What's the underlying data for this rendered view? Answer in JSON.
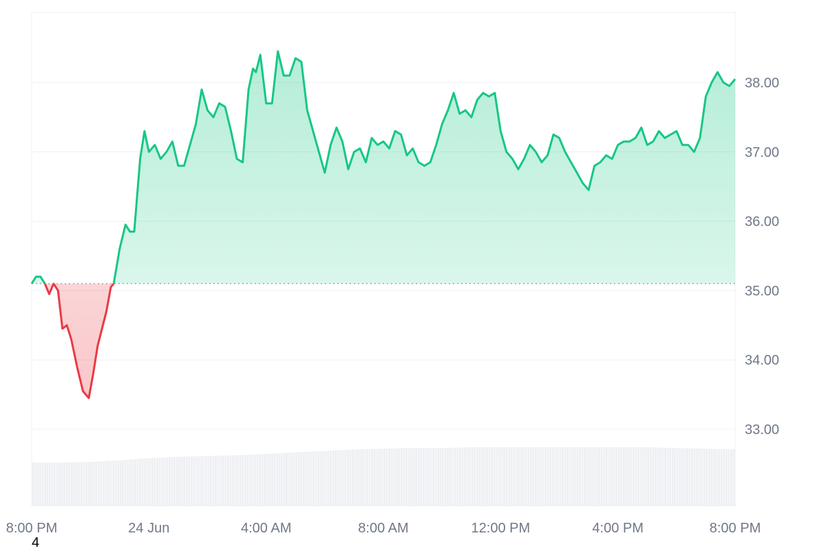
{
  "chart_data": {
    "type": "area",
    "baseline": 35.1,
    "ylim": [
      32.0,
      39.0
    ],
    "xlim": [
      0,
      24
    ],
    "y_ticks": [
      {
        "value": 38,
        "label": "38.00"
      },
      {
        "value": 37,
        "label": "37.00"
      },
      {
        "value": 36,
        "label": "36.00"
      },
      {
        "value": 35,
        "label": "35.00"
      },
      {
        "value": 34,
        "label": "34.00"
      },
      {
        "value": 33,
        "label": "33.00"
      }
    ],
    "x_ticks": [
      {
        "value": 0,
        "label": "8:00 PM"
      },
      {
        "value": 4,
        "label": "24 Jun"
      },
      {
        "value": 8,
        "label": "4:00 AM"
      },
      {
        "value": 12,
        "label": "8:00 AM"
      },
      {
        "value": 16,
        "label": "12:00 PM"
      },
      {
        "value": 20,
        "label": "4:00 PM"
      },
      {
        "value": 24,
        "label": "8:00 PM"
      }
    ],
    "colors": {
      "up": "#16c784",
      "down": "#ea3943",
      "up_fill": "#16c784",
      "down_fill": "#ea3943",
      "volume": "#eef0f3",
      "grid": "#eef0f3",
      "baseline": "#8a919e"
    },
    "series": [
      {
        "x": [
          0,
          0.15,
          0.3,
          0.45,
          0.6,
          0.75,
          0.9,
          1.05,
          1.2,
          1.35,
          1.55,
          1.75,
          1.95,
          2.1,
          2.25,
          2.4,
          2.55,
          2.7,
          2.8,
          3.0,
          3.2,
          3.35,
          3.5,
          3.7,
          3.85,
          4.0,
          4.2,
          4.4,
          4.6,
          4.8,
          5.0,
          5.2,
          5.4,
          5.6,
          5.8,
          6.0,
          6.2,
          6.4,
          6.6,
          6.8,
          7.0,
          7.2,
          7.4,
          7.55,
          7.65,
          7.8,
          8.0,
          8.2,
          8.4,
          8.6,
          8.8,
          9.0,
          9.2,
          9.4,
          9.6,
          9.8,
          10.0,
          10.2,
          10.4,
          10.6,
          10.8,
          11.0,
          11.2,
          11.4,
          11.6,
          11.8,
          12.0,
          12.2,
          12.4,
          12.6,
          12.8,
          13.0,
          13.2,
          13.4,
          13.6,
          13.8,
          14.0,
          14.2,
          14.4,
          14.6,
          14.8,
          15.0,
          15.2,
          15.4,
          15.6,
          15.8,
          16.0,
          16.2,
          16.4,
          16.6,
          16.8,
          17.0,
          17.2,
          17.4,
          17.6,
          17.8,
          18.0,
          18.2,
          18.4,
          18.6,
          18.8,
          19.0,
          19.2,
          19.4,
          19.6,
          19.8,
          20.0,
          20.2,
          20.4,
          20.6,
          20.8,
          21.0,
          21.2,
          21.4,
          21.6,
          21.8,
          22.0,
          22.2,
          22.4,
          22.6,
          22.8,
          23.0,
          23.2,
          23.4,
          23.6,
          23.8,
          24.0
        ],
        "y": [
          35.1,
          35.2,
          35.2,
          35.1,
          34.95,
          35.1,
          35.0,
          34.45,
          34.5,
          34.3,
          33.9,
          33.55,
          33.45,
          33.8,
          34.2,
          34.45,
          34.7,
          35.05,
          35.1,
          35.6,
          35.95,
          35.85,
          35.85,
          36.9,
          37.3,
          37.0,
          37.1,
          36.9,
          37.0,
          37.15,
          36.8,
          36.8,
          37.1,
          37.4,
          37.9,
          37.6,
          37.5,
          37.7,
          37.65,
          37.3,
          36.9,
          36.85,
          37.9,
          38.2,
          38.15,
          38.4,
          37.7,
          37.7,
          38.45,
          38.1,
          38.1,
          38.35,
          38.3,
          37.6,
          37.3,
          37.0,
          36.7,
          37.1,
          37.35,
          37.15,
          36.75,
          37.0,
          37.05,
          36.85,
          37.2,
          37.1,
          37.15,
          37.05,
          37.3,
          37.25,
          36.95,
          37.05,
          36.85,
          36.8,
          36.85,
          37.1,
          37.4,
          37.6,
          37.85,
          37.55,
          37.6,
          37.5,
          37.75,
          37.85,
          37.8,
          37.85,
          37.3,
          37.0,
          36.9,
          36.75,
          36.9,
          37.1,
          37.0,
          36.85,
          36.95,
          37.25,
          37.2,
          37.0,
          36.85,
          36.7,
          36.55,
          36.45,
          36.8,
          36.85,
          36.95,
          36.9,
          37.1,
          37.15,
          37.15,
          37.2,
          37.35,
          37.1,
          37.15,
          37.3,
          37.2,
          37.25,
          37.3,
          37.1,
          37.1,
          37.0,
          37.2,
          37.8,
          38.0,
          38.15,
          38.0,
          37.95,
          38.05
        ]
      }
    ],
    "volume": [
      {
        "x": 0.0,
        "v": 0.6
      },
      {
        "x": 1.0,
        "v": 0.6
      },
      {
        "x": 2.0,
        "v": 0.61
      },
      {
        "x": 3.0,
        "v": 0.63
      },
      {
        "x": 4.0,
        "v": 0.66
      },
      {
        "x": 5.0,
        "v": 0.68
      },
      {
        "x": 6.0,
        "v": 0.69
      },
      {
        "x": 7.0,
        "v": 0.7
      },
      {
        "x": 8.0,
        "v": 0.72
      },
      {
        "x": 9.0,
        "v": 0.74
      },
      {
        "x": 10.0,
        "v": 0.76
      },
      {
        "x": 11.0,
        "v": 0.78
      },
      {
        "x": 12.0,
        "v": 0.79
      },
      {
        "x": 13.0,
        "v": 0.8
      },
      {
        "x": 14.0,
        "v": 0.8
      },
      {
        "x": 15.0,
        "v": 0.81
      },
      {
        "x": 16.0,
        "v": 0.81
      },
      {
        "x": 17.0,
        "v": 0.81
      },
      {
        "x": 18.0,
        "v": 0.81
      },
      {
        "x": 19.0,
        "v": 0.81
      },
      {
        "x": 20.0,
        "v": 0.81
      },
      {
        "x": 21.0,
        "v": 0.81
      },
      {
        "x": 22.0,
        "v": 0.8
      },
      {
        "x": 23.0,
        "v": 0.79
      },
      {
        "x": 24.0,
        "v": 0.78
      }
    ]
  },
  "corner_label": "4"
}
